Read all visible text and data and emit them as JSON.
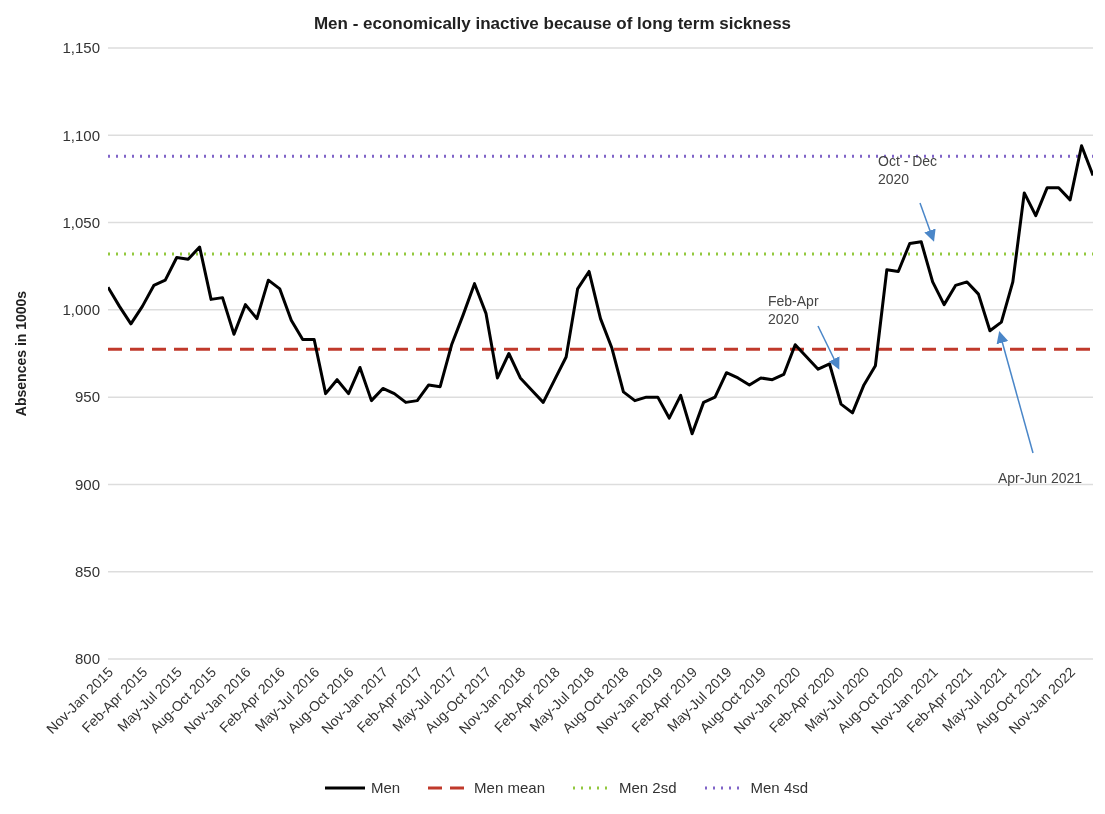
{
  "chart_data": {
    "type": "line",
    "title": "Men - economically inactive because of long term sickness",
    "ylabel": "Absences in 1000s",
    "categories": [
      "Nov-Jan 2015",
      null,
      null,
      "Feb-Apr 2015",
      null,
      null,
      "May-Jul 2015",
      null,
      null,
      "Aug-Oct 2015",
      null,
      null,
      "Nov-Jan 2016",
      null,
      null,
      "Feb-Apr 2016",
      null,
      null,
      "May-Jul 2016",
      null,
      null,
      "Aug-Oct 2016",
      null,
      null,
      "Nov-Jan 2017",
      null,
      null,
      "Feb-Apr 2017",
      null,
      null,
      "May-Jul 2017",
      null,
      null,
      "Aug-Oct 2017",
      null,
      null,
      "Nov-Jan 2018",
      null,
      null,
      "Feb-Apr 2018",
      null,
      null,
      "May-Jul 2018",
      null,
      null,
      "Aug-Oct 2018",
      null,
      null,
      "Nov-Jan 2019",
      null,
      null,
      "Feb-Apr 2019",
      null,
      null,
      "May-Jul 2019",
      null,
      null,
      "Aug-Oct 2019",
      null,
      null,
      "Nov-Jan 2020",
      null,
      null,
      "Feb-Apr 2020",
      null,
      null,
      "May-Jul 2020",
      null,
      null,
      "Aug-Oct 2020",
      null,
      null,
      "Nov-Jan 2021",
      null,
      null,
      "Feb-Apr 2021",
      null,
      null,
      "May-Jul 2021",
      null,
      null,
      "Aug-Oct 2021",
      null,
      null,
      "Nov-Jan 2022",
      null,
      null
    ],
    "series": [
      {
        "name": "Men",
        "color": "#000000",
        "values": [
          1013,
          1002,
          992,
          1002,
          1014,
          1017,
          1030,
          1029,
          1036,
          1006,
          1007,
          986,
          1003,
          995,
          1017,
          1012,
          994,
          983,
          983,
          952,
          960,
          952,
          967,
          948,
          955,
          952,
          947,
          948,
          957,
          956,
          980,
          997,
          1015,
          998,
          961,
          975,
          961,
          954,
          947,
          960,
          973,
          1012,
          1022,
          995,
          978,
          953,
          948,
          950,
          950,
          938,
          951,
          929,
          947,
          950,
          964,
          961,
          957,
          961,
          960,
          963,
          980,
          973,
          966,
          969,
          946,
          941,
          957,
          968,
          1023,
          1022,
          1038,
          1039,
          1016,
          1003,
          1014,
          1016,
          1009,
          988,
          993,
          1016,
          1067,
          1054,
          1070,
          1070,
          1063,
          1094,
          1077
        ]
      }
    ],
    "ref_lines": [
      {
        "axis": "y",
        "value": 977.5,
        "label": "Men mean",
        "color": "#c0392b",
        "line_style": "dashed"
      },
      {
        "axis": "y",
        "value": 1032,
        "label": "Men 2sd",
        "color": "#92c83e",
        "line_style": "dotted"
      },
      {
        "axis": "y",
        "value": 1088,
        "label": "Men 4sd",
        "color": "#8064c8",
        "line_style": "dotted"
      }
    ],
    "annotations": [
      "Oct - Dec\n2020",
      "Feb-Apr\n2020",
      "Apr-Jun 2021"
    ],
    "ylim": [
      800,
      1150
    ],
    "yticks": [
      800,
      850,
      900,
      950,
      {
        "value": 1000,
        "label": "1,000"
      },
      {
        "value": 1050,
        "label": "1,050"
      },
      {
        "value": 1100,
        "label": "1,100"
      },
      {
        "value": 1150,
        "label": "1,150"
      }
    ],
    "grid": "y",
    "legend": "bottom",
    "marker": "none",
    "line_style": "solid"
  }
}
